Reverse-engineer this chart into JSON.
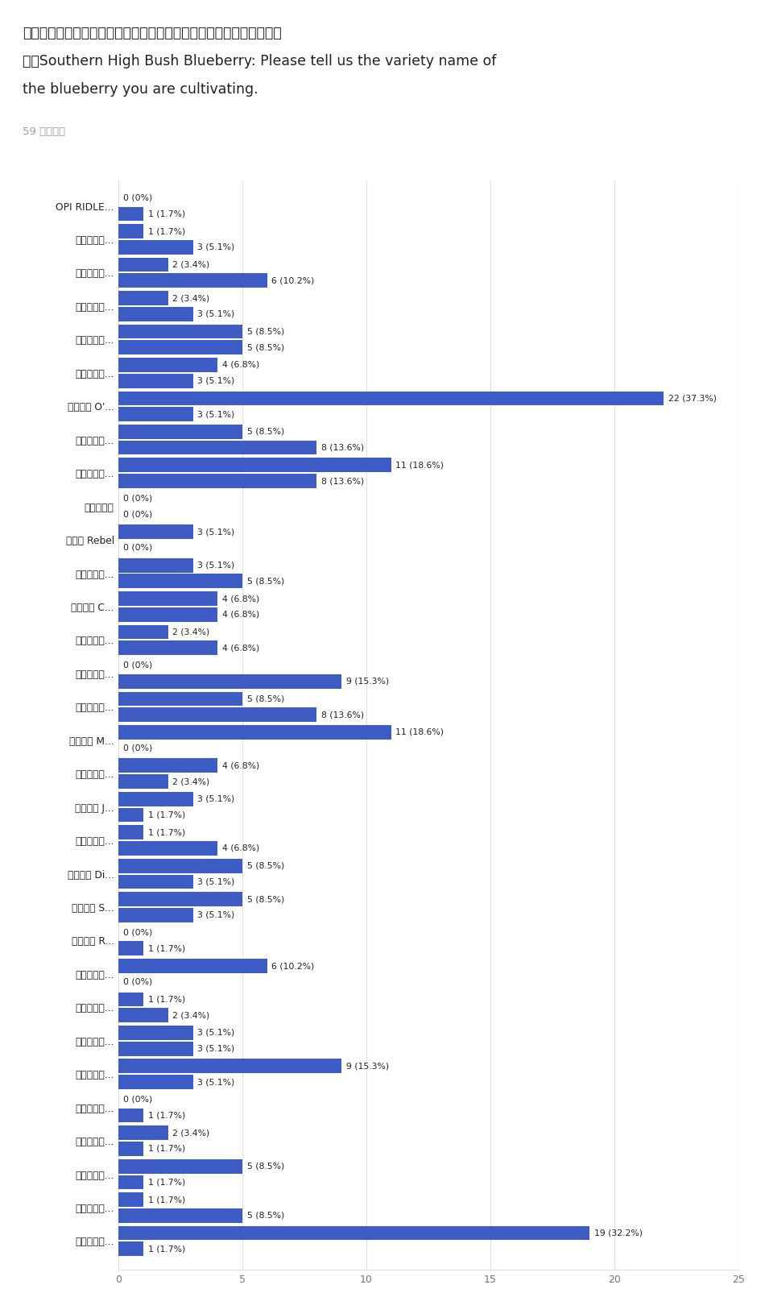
{
  "title_line1": "サザンハイブッシュ：育てているブルーベリーの品種を教えてくださ",
  "title_line2": "い。Southern High Bush Blueberry: Please tell us the variety name of",
  "title_line3": "the blueberry you are cultivating.",
  "subtitle": "59 件の回答",
  "bar_color": "#3d5cc4",
  "background_color": "#ffffff",
  "xlim": [
    0,
    25
  ],
  "xticks": [
    0,
    5,
    10,
    15,
    20,
    25
  ],
  "categories": [
    "OPI RIDLE...",
    "トワイライ...",
    "スノーチェ...",
    "ブリマドン...",
    "ファシング...",
    "ブラッデン...",
    "オニール O'...",
    "サファイア...",
    "ニューハノ...",
    "アイブルー",
    "レベル Rebel",
    "サウザンス...",
    "クーパー C...",
    "フローダブ...",
    "エイボンブ...",
    "エメラルド...",
    "ミスティ M...",
    "スプリング...",
    "ジュエル J...",
    "パルメット...",
    "デキシー Di...",
    "サミット S...",
    "ロブソン R...",
    "サウスムー...",
    "サンタフェ...",
    "ビューフォ...",
    "サンシャイ...",
    "ブルークリ...",
    "サンプソン...",
    "ガルフコー...",
    "ブルークリ...",
    "栽培してい..."
  ],
  "rows": [
    [
      0,
      "0%",
      1,
      "1.7%"
    ],
    [
      1,
      "1.7%",
      3,
      "5.1%"
    ],
    [
      2,
      "3.4%",
      6,
      "10.2%"
    ],
    [
      2,
      "3.4%",
      3,
      "5.1%"
    ],
    [
      5,
      "8.5%",
      5,
      "8.5%"
    ],
    [
      4,
      "6.8%",
      3,
      "5.1%"
    ],
    [
      22,
      "37.3%",
      3,
      "5.1%"
    ],
    [
      5,
      "8.5%",
      8,
      "13.6%"
    ],
    [
      11,
      "18.6%",
      8,
      "13.6%"
    ],
    [
      0,
      "0%",
      0,
      "0%"
    ],
    [
      3,
      "5.1%",
      0,
      "0%"
    ],
    [
      3,
      "5.1%",
      5,
      "8.5%"
    ],
    [
      4,
      "6.8%",
      4,
      "6.8%"
    ],
    [
      2,
      "3.4%",
      4,
      "6.8%"
    ],
    [
      0,
      "0%",
      9,
      "15.3%"
    ],
    [
      5,
      "8.5%",
      8,
      "13.6%"
    ],
    [
      11,
      "18.6%",
      0,
      "0%"
    ],
    [
      4,
      "6.8%",
      2,
      "3.4%"
    ],
    [
      3,
      "5.1%",
      1,
      "1.7%"
    ],
    [
      1,
      "1.7%",
      4,
      "6.8%"
    ],
    [
      5,
      "8.5%",
      3,
      "5.1%"
    ],
    [
      5,
      "8.5%",
      3,
      "5.1%"
    ],
    [
      0,
      "0%",
      1,
      "1.7%"
    ],
    [
      6,
      "10.2%",
      0,
      "0%"
    ],
    [
      1,
      "1.7%",
      2,
      "3.4%"
    ],
    [
      3,
      "5.1%",
      3,
      "5.1%"
    ],
    [
      9,
      "15.3%",
      3,
      "5.1%"
    ],
    [
      0,
      "0%",
      1,
      "1.7%"
    ],
    [
      2,
      "3.4%",
      1,
      "1.7%"
    ],
    [
      5,
      "8.5%",
      1,
      "1.7%"
    ],
    [
      1,
      "1.7%",
      5,
      "8.5%"
    ],
    [
      19,
      "32.2%",
      1,
      "1.7%"
    ]
  ]
}
